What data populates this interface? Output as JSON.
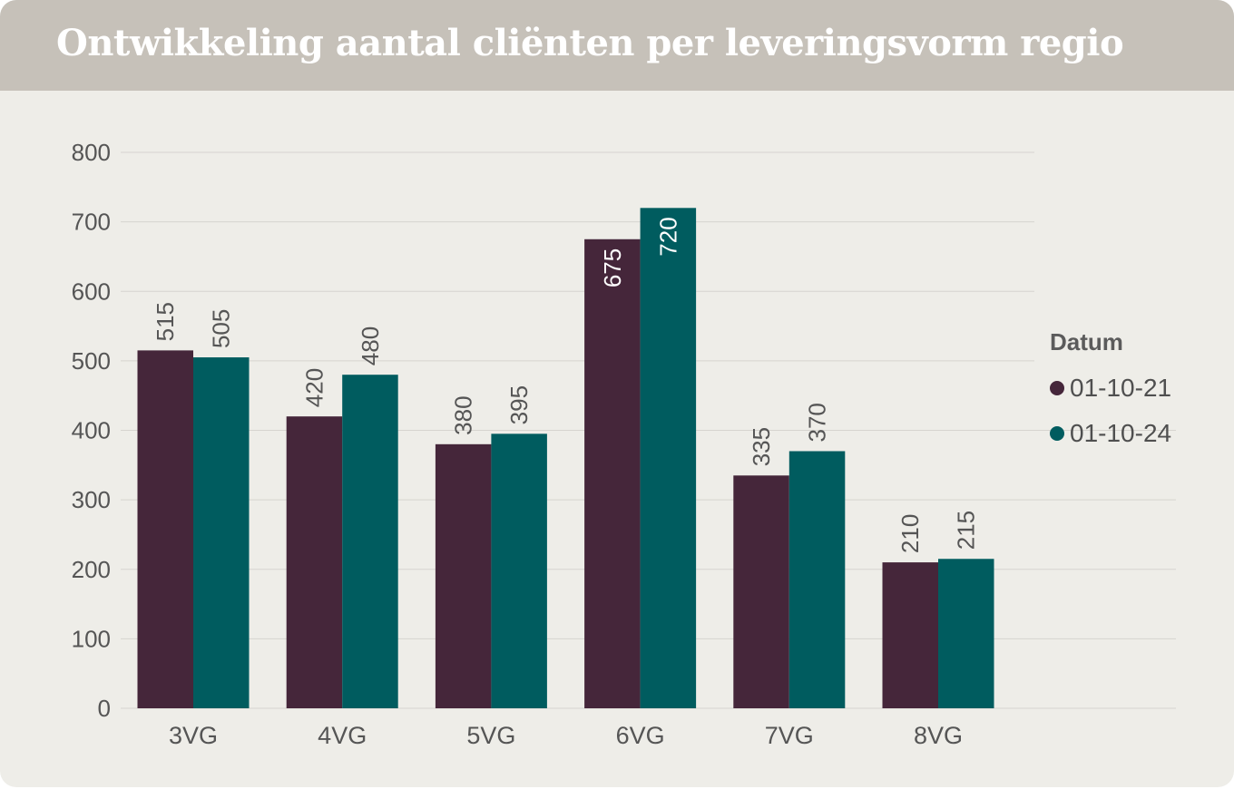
{
  "title": "Ontwikkeling aantal cliënten per leveringsvorm regio",
  "colors": {
    "header_bg": "#c6c1b9",
    "panel_bg": "#eeede8",
    "series_2021": "#45263a",
    "series_2024": "#005c5f",
    "grid": "#d6d4cf",
    "text": "#555555"
  },
  "chart_data": {
    "type": "bar",
    "title": "Ontwikkeling aantal cliënten per leveringsvorm regio",
    "categories": [
      "3VG",
      "4VG",
      "5VG",
      "6VG",
      "7VG",
      "8VG"
    ],
    "series": [
      {
        "name": "01-10-21",
        "color": "#45263a",
        "values": [
          515,
          420,
          380,
          675,
          335,
          210
        ]
      },
      {
        "name": "01-10-24",
        "color": "#005c5f",
        "values": [
          505,
          480,
          395,
          720,
          370,
          215
        ]
      }
    ],
    "xlabel": "",
    "ylabel": "",
    "ylim": [
      0,
      800
    ],
    "yticks": [
      "0",
      "100",
      "200",
      "300",
      "400",
      "500",
      "600",
      "700",
      "800"
    ],
    "grid": true,
    "data_labels": true,
    "legend_title": "Datum",
    "legend_position": "right"
  }
}
